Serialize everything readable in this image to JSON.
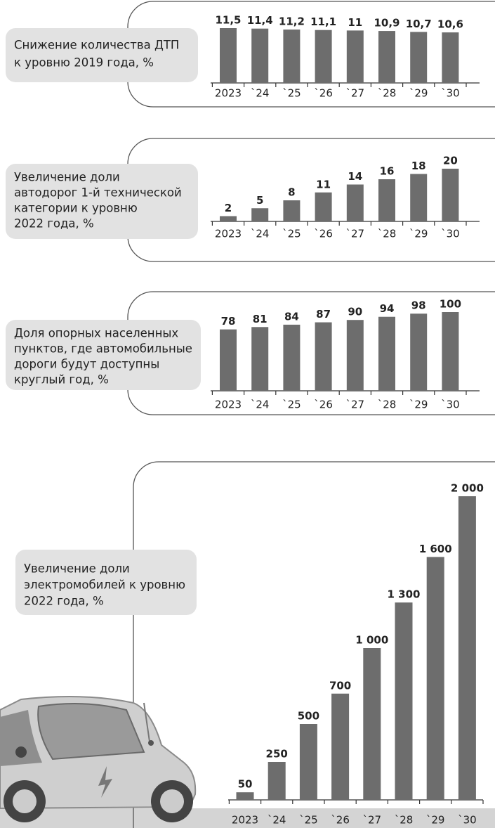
{
  "chart_data": [
    {
      "type": "bar",
      "title": [
        "Снижение количества ДТП",
        "к уровню 2019 года, %"
      ],
      "categories": [
        "2023",
        "`24",
        "`25",
        "`26",
        "`27",
        "`28",
        "`29",
        "`30"
      ],
      "values": [
        11.5,
        11.4,
        11.2,
        11.1,
        11,
        10.9,
        10.7,
        10.6
      ],
      "value_labels": [
        "11,5",
        "11,4",
        "11,2",
        "11,1",
        "11",
        "10,9",
        "10,7",
        "10,6"
      ],
      "color": "#6d6d6d"
    },
    {
      "type": "bar",
      "title": [
        "Увеличение доли",
        "автодорог 1-й технической",
        "категории к уровню",
        "2022 года, %"
      ],
      "categories": [
        "2023",
        "`24",
        "`25",
        "`26",
        "`27",
        "`28",
        "`29",
        "`30"
      ],
      "values": [
        2,
        5,
        8,
        11,
        14,
        16,
        18,
        20
      ],
      "color": "#6d6d6d"
    },
    {
      "type": "bar",
      "title": [
        "Доля опорных населенных",
        "пунктов, где автомобильные",
        "дороги будут доступны",
        "круглый год, %"
      ],
      "categories": [
        "2023",
        "`24",
        "`25",
        "`26",
        "`27",
        "`28",
        "`29",
        "`30"
      ],
      "values": [
        78,
        81,
        84,
        87,
        90,
        94,
        98,
        100
      ],
      "color": "#6d6d6d"
    },
    {
      "type": "bar",
      "title": [
        "Увеличение доли",
        "электромобилей к уровню",
        "2022 года, %"
      ],
      "categories": [
        "2023",
        "`24",
        "`25",
        "`26",
        "`27",
        "`28",
        "`29",
        "`30"
      ],
      "values": [
        50,
        250,
        500,
        700,
        1000,
        1300,
        1600,
        2000
      ],
      "value_labels": [
        "50",
        "250",
        "500",
        "700",
        "1 000",
        "1 300",
        "1 600",
        "2 000"
      ],
      "color": "#6d6d6d"
    }
  ]
}
